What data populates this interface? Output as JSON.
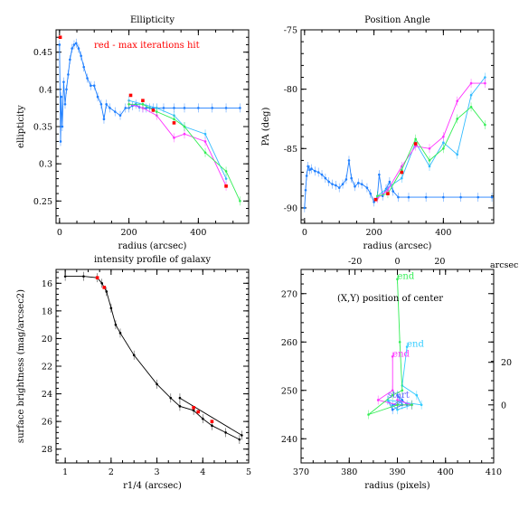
{
  "chart_data": [
    {
      "type": "line",
      "title": "Ellipticity",
      "xlabel": "radius (arcsec)",
      "ylabel": "ellipticity",
      "xlim": [
        -10,
        545
      ],
      "ylim": [
        0.22,
        0.48
      ],
      "xticks": [
        0,
        200,
        400
      ],
      "yticks": [
        0.25,
        0.3,
        0.35,
        0.4,
        0.45
      ],
      "ytick_labels": [
        "0.25",
        "0.3",
        "0.35",
        "0.4",
        "0.45"
      ],
      "annotation": {
        "text": "red - max iterations hit",
        "color": "#ff0000"
      },
      "series": [
        {
          "color": "#1f7fff",
          "x": [
            0,
            3,
            5,
            8,
            12,
            16,
            20,
            25,
            30,
            36,
            42,
            48,
            55,
            62,
            70,
            80,
            90,
            100,
            110,
            120,
            128,
            135,
            145,
            160,
            175,
            190,
            200,
            210,
            220,
            230,
            240,
            250,
            260,
            270,
            280,
            300,
            330,
            360,
            400,
            440,
            480,
            520
          ],
          "y": [
            0.46,
            0.33,
            0.39,
            0.35,
            0.41,
            0.38,
            0.4,
            0.42,
            0.44,
            0.455,
            0.46,
            0.462,
            0.455,
            0.445,
            0.43,
            0.415,
            0.405,
            0.405,
            0.39,
            0.38,
            0.36,
            0.38,
            0.375,
            0.37,
            0.365,
            0.375,
            0.375,
            0.378,
            0.38,
            0.376,
            0.375,
            0.375,
            0.375,
            0.375,
            0.375,
            0.375,
            0.375,
            0.375,
            0.375,
            0.375,
            0.375,
            0.375
          ]
        },
        {
          "color": "#33bbff",
          "x": [
            200,
            240,
            280,
            330,
            360,
            420,
            480
          ],
          "y": [
            0.385,
            0.38,
            0.375,
            0.365,
            0.35,
            0.34,
            0.28
          ]
        },
        {
          "color": "#ff33ff",
          "x": [
            200,
            240,
            280,
            330,
            360,
            420,
            480
          ],
          "y": [
            0.38,
            0.375,
            0.365,
            0.335,
            0.34,
            0.33,
            0.27
          ]
        },
        {
          "color": "#33ee55",
          "x": [
            200,
            240,
            280,
            330,
            360,
            420,
            480,
            520
          ],
          "y": [
            0.38,
            0.38,
            0.37,
            0.36,
            0.35,
            0.315,
            0.29,
            0.25
          ]
        }
      ],
      "red_points": {
        "x": [
          2,
          205,
          240,
          270,
          330,
          480
        ],
        "y": [
          0.47,
          0.392,
          0.385,
          0.372,
          0.355,
          0.27
        ]
      }
    },
    {
      "type": "line",
      "title": "Position Angle",
      "xlabel": "radius (arcsec)",
      "ylabel": "PA (deg)",
      "xlim": [
        -10,
        545
      ],
      "ylim": [
        -91.3,
        -75
      ],
      "xticks": [
        0,
        200,
        400
      ],
      "yticks": [
        -75,
        -80,
        -85,
        -90
      ],
      "ytick_labels": [
        "-75",
        "-80",
        "-85",
        "-90"
      ],
      "series": [
        {
          "color": "#1f7fff",
          "x": [
            0,
            3,
            6,
            10,
            15,
            20,
            30,
            40,
            50,
            60,
            70,
            80,
            90,
            100,
            110,
            120,
            128,
            135,
            145,
            155,
            165,
            180,
            190,
            200,
            210,
            215,
            225,
            235,
            245,
            255,
            270,
            300,
            350,
            400,
            450,
            500,
            540
          ],
          "y": [
            -90,
            -88.5,
            -87.3,
            -86.5,
            -86.8,
            -86.7,
            -86.9,
            -87.0,
            -87.2,
            -87.5,
            -87.8,
            -88.0,
            -88.1,
            -88.3,
            -88.0,
            -87.6,
            -86.0,
            -87.5,
            -88.2,
            -87.9,
            -88.0,
            -88.3,
            -88.8,
            -89.5,
            -89.0,
            -87.2,
            -89.0,
            -88.4,
            -87.8,
            -88.6,
            -89.1,
            -89.1,
            -89.1,
            -89.1,
            -89.1,
            -89.1,
            -89.1
          ]
        },
        {
          "color": "#33bbff",
          "x": [
            210,
            240,
            280,
            320,
            360,
            400,
            440,
            480,
            520
          ],
          "y": [
            -89.0,
            -88.3,
            -87.5,
            -84.5,
            -86.5,
            -84.5,
            -85.5,
            -80.5,
            -79.0
          ]
        },
        {
          "color": "#ff33ff",
          "x": [
            210,
            240,
            280,
            320,
            360,
            400,
            440,
            480,
            520
          ],
          "y": [
            -89.2,
            -88.5,
            -86.5,
            -84.8,
            -85.0,
            -84.0,
            -81.0,
            -79.5,
            -79.5
          ]
        },
        {
          "color": "#33ee55",
          "x": [
            210,
            240,
            280,
            320,
            360,
            400,
            440,
            480,
            520
          ],
          "y": [
            -89.0,
            -88.8,
            -86.8,
            -84.2,
            -86.0,
            -85.0,
            -82.5,
            -81.5,
            -83.0
          ]
        }
      ],
      "red_points": {
        "x": [
          205,
          240,
          280,
          320
        ],
        "y": [
          -89.3,
          -88.8,
          -87.0,
          -84.6
        ]
      }
    },
    {
      "type": "line",
      "title": "intensity profile of galaxy",
      "xlabel": "r1/4 (arcsec)",
      "ylabel": "surface brightness (mag/arcsec2)",
      "xlim": [
        0.8,
        5
      ],
      "ylim": [
        29,
        15
      ],
      "xticks": [
        1,
        2,
        3,
        4,
        5
      ],
      "yticks": [
        16,
        18,
        20,
        22,
        24,
        26,
        28
      ],
      "series": [
        {
          "color": "#000000",
          "x": [
            1.0,
            1.4,
            1.7,
            1.8,
            1.9,
            2.0,
            2.1,
            2.2,
            2.5,
            3.0,
            3.3,
            3.5,
            3.8,
            4.0,
            4.2,
            4.5,
            4.8
          ],
          "y": [
            15.5,
            15.5,
            15.6,
            16.0,
            16.6,
            17.8,
            19.0,
            19.6,
            21.2,
            23.3,
            24.3,
            24.9,
            25.2,
            25.8,
            26.3,
            26.8,
            27.3
          ]
        },
        {
          "color": "#000000",
          "x": [
            3.5,
            4.85
          ],
          "y": [
            24.3,
            27.0
          ]
        }
      ],
      "red_points": {
        "x": [
          1.7,
          1.85,
          3.8,
          3.9,
          4.2
        ],
        "y": [
          15.6,
          16.3,
          25.0,
          25.3,
          26.0
        ]
      }
    },
    {
      "type": "line",
      "title": "",
      "annotation": {
        "text": "(X,Y) position of center",
        "color": "#000000"
      },
      "xlabel": "radius (pixels)",
      "xlim": [
        370,
        410
      ],
      "ylim": [
        235,
        275
      ],
      "xticks": [
        370,
        380,
        390,
        400,
        410
      ],
      "yticks": [
        240,
        250,
        260,
        270
      ],
      "top_axis": {
        "label": "arcsec",
        "ticks": [
          -20,
          0,
          20
        ]
      },
      "right_axis": {
        "ticks": [
          0,
          20
        ]
      },
      "series": [
        {
          "color": "#1f7fff",
          "x": [
            388,
            389,
            391,
            390,
            392,
            389,
            391,
            390
          ],
          "y": [
            248,
            246,
            247,
            249,
            247,
            247,
            248,
            247
          ]
        },
        {
          "color": "#33ccff",
          "x": [
            392,
            391,
            394,
            395,
            388,
            390,
            393
          ],
          "y": [
            259,
            251,
            249,
            247,
            248,
            246,
            247
          ]
        },
        {
          "color": "#ff33ff",
          "x": [
            389,
            389,
            386,
            390,
            393,
            390
          ],
          "y": [
            257,
            250,
            248,
            247,
            247,
            248
          ]
        },
        {
          "color": "#33ee55",
          "x": [
            390,
            390.5,
            391,
            389,
            384,
            390,
            393
          ],
          "y": [
            273,
            260,
            250,
            249,
            245,
            247,
            247
          ]
        }
      ],
      "labels": [
        {
          "text": "end",
          "x": 390,
          "y": 273,
          "color": "#33ee55"
        },
        {
          "text": "end",
          "x": 392,
          "y": 259,
          "color": "#33ccff"
        },
        {
          "text": "end",
          "x": 389,
          "y": 257,
          "color": "#ff33ff"
        },
        {
          "text": "start",
          "x": 388,
          "y": 248.5,
          "color": "#6666ff"
        }
      ]
    }
  ]
}
